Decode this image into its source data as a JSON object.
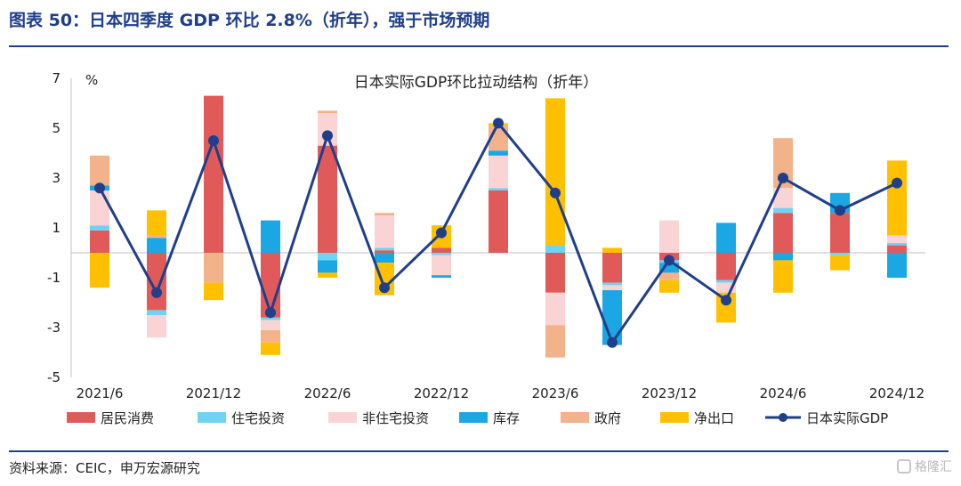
{
  "header": {
    "title": "图表 50：日本四季度 GDP 环比 2.8%（折年），强于市场预期"
  },
  "footer": {
    "source": "资料来源：CEIC，申万宏源研究",
    "watermark": "格隆汇"
  },
  "chart_data": {
    "type": "bar",
    "stacked": true,
    "title": "日本实际GDP环比拉动结构（折年）",
    "ylabel": "%",
    "ylim": [
      -5,
      7
    ],
    "yticks": [
      -5,
      -3,
      -1,
      1,
      3,
      5,
      7
    ],
    "categories": [
      "2021/6",
      "2021/9",
      "2021/12",
      "2022/3",
      "2022/6",
      "2022/9",
      "2022/12",
      "2023/3",
      "2023/6",
      "2023/9",
      "2023/12",
      "2024/3",
      "2024/6",
      "2024/9",
      "2024/12"
    ],
    "xtick_labels": [
      {
        "index": 0,
        "label": "2021/6"
      },
      {
        "index": 2,
        "label": "2021/12"
      },
      {
        "index": 4,
        "label": "2022/6"
      },
      {
        "index": 6,
        "label": "2022/12"
      },
      {
        "index": 8,
        "label": "2023/6"
      },
      {
        "index": 10,
        "label": "2023/12"
      },
      {
        "index": 12,
        "label": "2024/6"
      },
      {
        "index": 14,
        "label": "2024/12"
      }
    ],
    "series": [
      {
        "name": "居民消费",
        "color": "#e05a5a",
        "values": [
          0.9,
          -2.3,
          6.3,
          -2.6,
          4.3,
          0.1,
          0.2,
          2.5,
          -1.6,
          -1.2,
          -0.3,
          -1.1,
          1.6,
          1.6,
          0.3
        ]
      },
      {
        "name": "住宅投资",
        "color": "#6fd3f3",
        "values": [
          0.2,
          -0.2,
          0.0,
          -0.1,
          -0.3,
          0.1,
          -0.1,
          0.1,
          0.3,
          -0.1,
          -0.1,
          -0.1,
          0.2,
          -0.1,
          0.1
        ]
      },
      {
        "name": "非住宅投资",
        "color": "#fad4d4",
        "values": [
          1.4,
          -0.9,
          0.0,
          -0.4,
          1.3,
          1.3,
          -0.8,
          1.3,
          -1.3,
          -0.2,
          1.3,
          -0.4,
          0.8,
          0.0,
          0.3
        ]
      },
      {
        "name": "库存",
        "color": "#1aa7e3",
        "values": [
          0.2,
          0.6,
          0.0,
          1.3,
          -0.5,
          -0.4,
          -0.1,
          0.2,
          0.0,
          -2.2,
          -0.4,
          1.2,
          -0.3,
          0.8,
          -1.0
        ]
      },
      {
        "name": "政府",
        "color": "#f2b28a",
        "values": [
          1.2,
          0.1,
          -1.2,
          -0.5,
          0.1,
          0.1,
          0.0,
          1.0,
          -1.3,
          0.0,
          -0.3,
          0.0,
          2.0,
          0.0,
          0.0
        ]
      },
      {
        "name": "净出口",
        "color": "#ffc000",
        "values": [
          -1.4,
          1.0,
          -0.7,
          -0.5,
          -0.2,
          -1.3,
          0.9,
          0.1,
          5.9,
          0.2,
          -0.5,
          -1.2,
          -1.3,
          -0.6,
          3.0
        ]
      }
    ],
    "line": {
      "name": "日本实际GDP",
      "color": "#1f3f8a",
      "values": [
        2.6,
        -1.6,
        4.5,
        -2.4,
        4.7,
        -1.4,
        0.8,
        5.2,
        2.4,
        -3.6,
        -0.3,
        -1.9,
        3.0,
        1.7,
        2.8
      ]
    }
  }
}
